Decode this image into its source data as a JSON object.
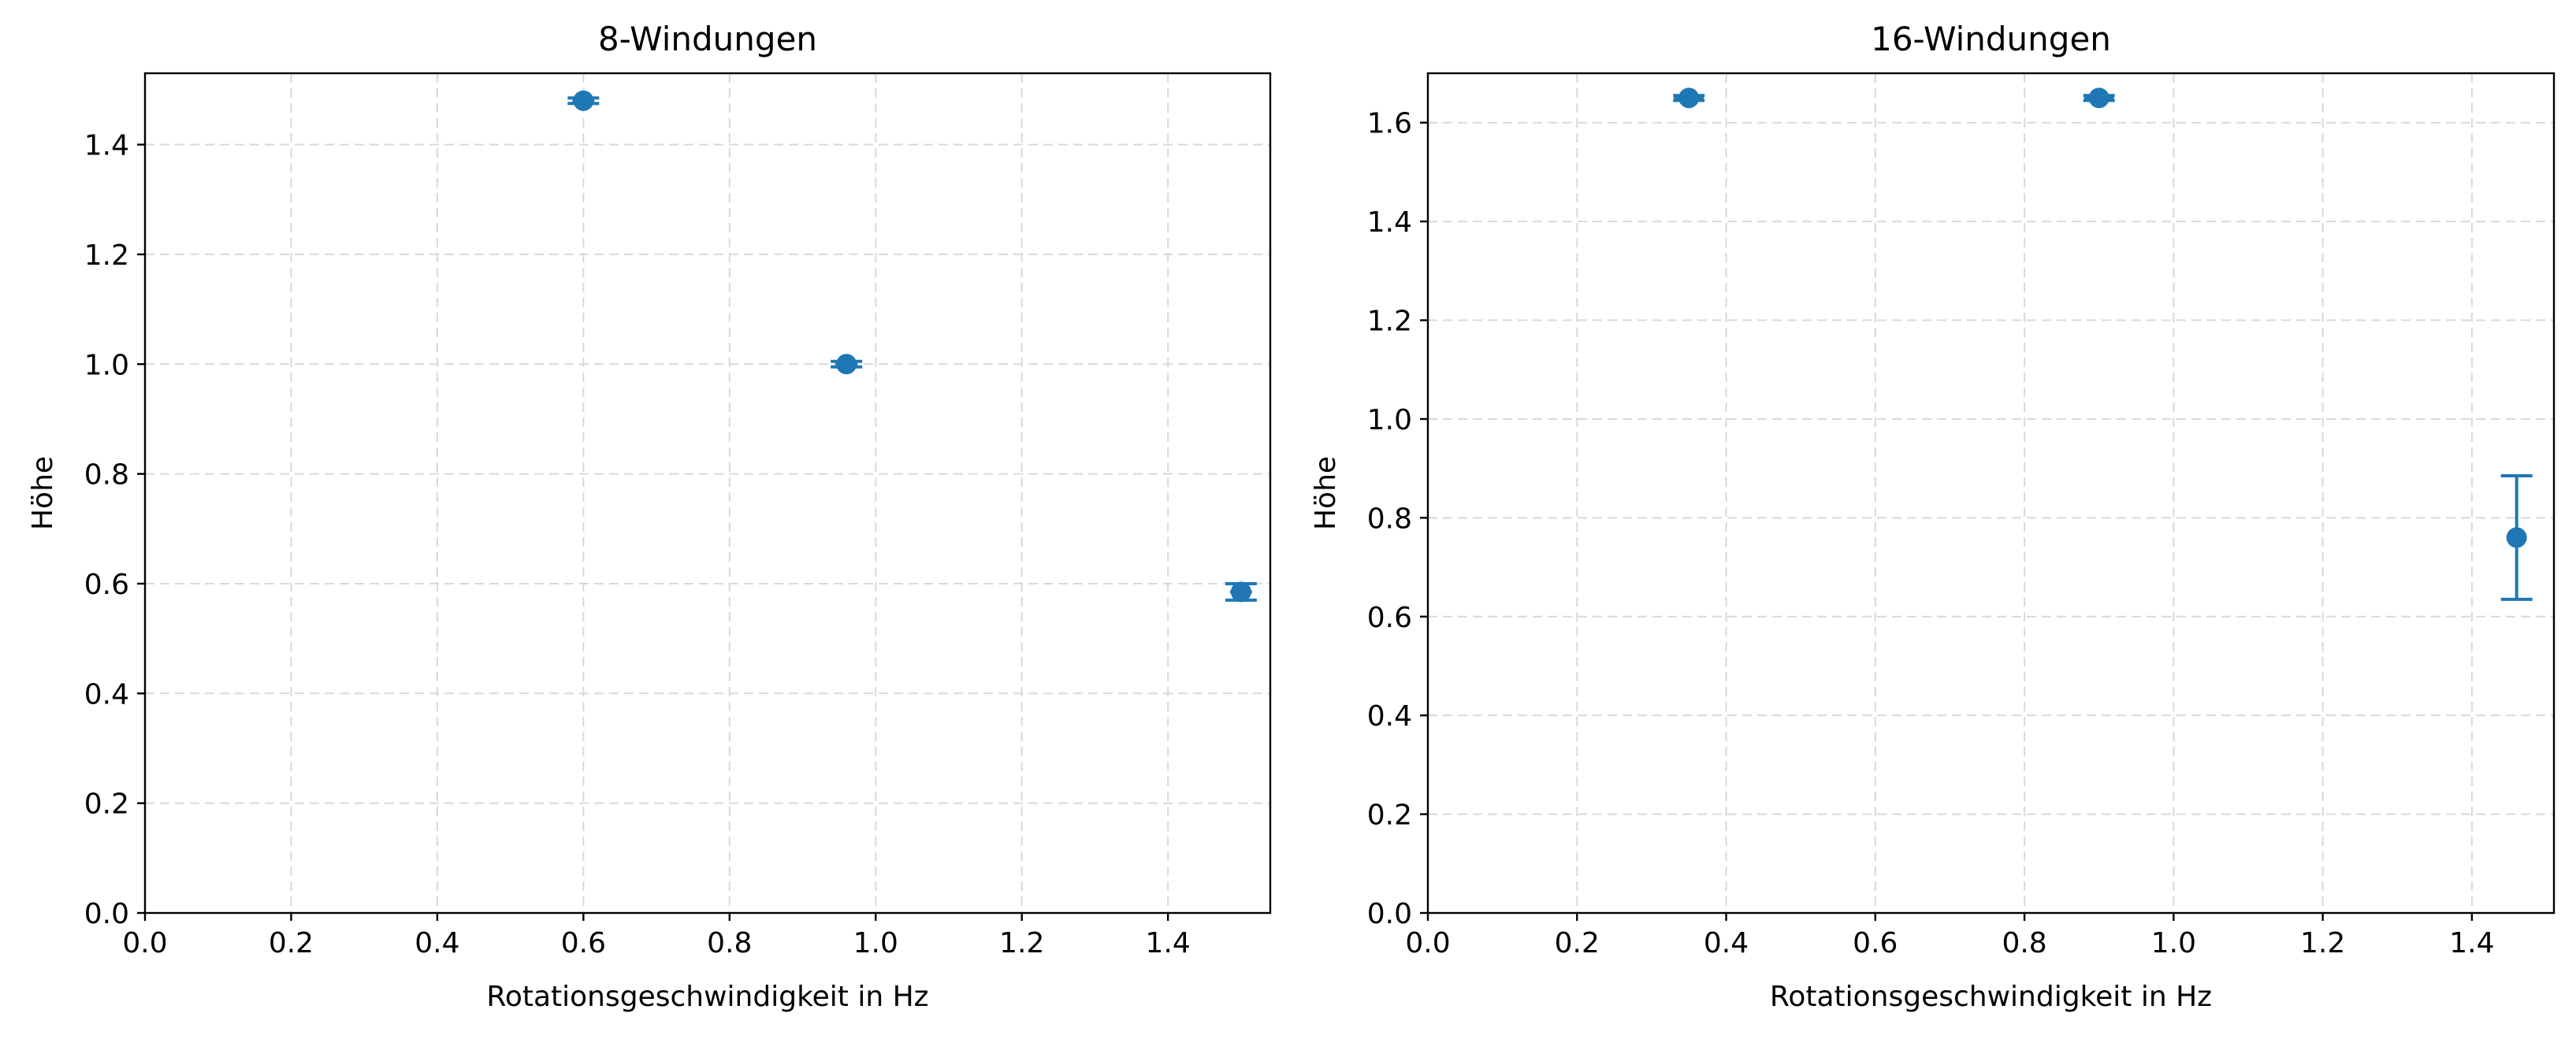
{
  "chart_data": [
    {
      "type": "scatter",
      "title": "8-Windungen",
      "xlabel": "Rotationsgeschwindigkeit in Hz",
      "ylabel": "Höhe",
      "xlim": [
        0,
        1.54
      ],
      "ylim": [
        0,
        1.53
      ],
      "xticks": [
        "0.0",
        "0.2",
        "0.4",
        "0.6",
        "0.8",
        "1.0",
        "1.2",
        "1.4"
      ],
      "yticks": [
        "0.0",
        "0.2",
        "0.4",
        "0.6",
        "0.8",
        "1.0",
        "1.2",
        "1.4"
      ],
      "grid": true,
      "error_bars": true,
      "points": [
        {
          "x": 0.6,
          "y": 1.48,
          "yerr": 0.005,
          "xerr": 0.015
        },
        {
          "x": 0.96,
          "y": 1.0,
          "yerr": 0.005,
          "xerr": 0.015
        },
        {
          "x": 1.5,
          "y": 0.585,
          "yerr": 0.015,
          "xerr": 0.015
        }
      ]
    },
    {
      "type": "scatter",
      "title": "16-Windungen",
      "xlabel": "Rotationsgeschwindigkeit in Hz",
      "ylabel": "Höhe",
      "xlim": [
        0,
        1.51
      ],
      "ylim": [
        0,
        1.7
      ],
      "xticks": [
        "0.0",
        "0.2",
        "0.4",
        "0.6",
        "0.8",
        "1.0",
        "1.2",
        "1.4"
      ],
      "yticks": [
        "0.0",
        "0.2",
        "0.4",
        "0.6",
        "0.8",
        "1.0",
        "1.2",
        "1.4",
        "1.6"
      ],
      "grid": true,
      "error_bars": true,
      "points": [
        {
          "x": 0.35,
          "y": 1.65,
          "yerr": 0.005,
          "xerr": 0.02
        },
        {
          "x": 0.9,
          "y": 1.65,
          "yerr": 0.005,
          "xerr": 0.02
        },
        {
          "x": 1.46,
          "y": 0.76,
          "yerr": 0.125,
          "xerr": 0.0
        }
      ]
    }
  ],
  "colors": {
    "marker": "#1f77b4",
    "grid": "#d9d9d9",
    "axis": "#000000"
  }
}
